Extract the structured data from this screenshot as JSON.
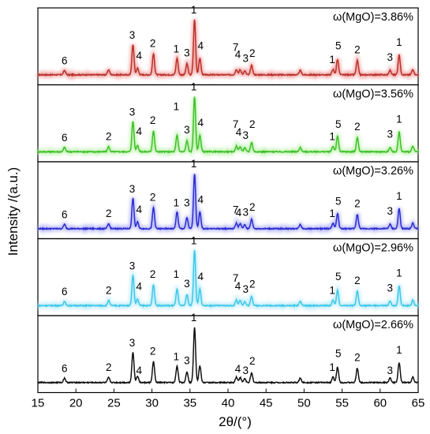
{
  "chart_data": {
    "type": "line",
    "xlabel": "2θ/(°)",
    "ylabel": "Intensity /(a.u.)",
    "xlim": [
      15,
      65
    ],
    "x_ticks": [
      "15",
      "20",
      "25",
      "30",
      "35",
      "40",
      "45",
      "50",
      "55",
      "60",
      "65"
    ],
    "grid": false,
    "baseline_peaks": [
      {
        "x": 18.5,
        "h": 0.08
      },
      {
        "x": 24.3,
        "h": 0.09
      },
      {
        "x": 27.5,
        "h": 0.55
      },
      {
        "x": 28.1,
        "h": 0.12
      },
      {
        "x": 30.2,
        "h": 0.38
      },
      {
        "x": 33.3,
        "h": 0.3
      },
      {
        "x": 34.6,
        "h": 0.2
      },
      {
        "x": 35.6,
        "h": 1.0
      },
      {
        "x": 36.3,
        "h": 0.3
      },
      {
        "x": 41.1,
        "h": 0.1
      },
      {
        "x": 41.6,
        "h": 0.09
      },
      {
        "x": 42.2,
        "h": 0.07
      },
      {
        "x": 43.1,
        "h": 0.17
      },
      {
        "x": 49.5,
        "h": 0.08
      },
      {
        "x": 53.8,
        "h": 0.1
      },
      {
        "x": 54.4,
        "h": 0.28
      },
      {
        "x": 57.0,
        "h": 0.26
      },
      {
        "x": 61.3,
        "h": 0.08
      },
      {
        "x": 62.5,
        "h": 0.36
      },
      {
        "x": 64.3,
        "h": 0.1
      }
    ],
    "series": [
      {
        "name": "ω(MgO)=3.86%",
        "color": "#b8322a",
        "glow": "#f08a8a",
        "peak_labels": [
          {
            "text": "6",
            "x": 18.5,
            "h": 0.16
          },
          {
            "text": "3",
            "x": 27.4,
            "h": 0.62
          },
          {
            "text": "4",
            "x": 28.3,
            "h": 0.25
          },
          {
            "text": "2",
            "x": 30.1,
            "h": 0.47
          },
          {
            "text": "1",
            "x": 33.2,
            "h": 0.37
          },
          {
            "text": "3",
            "x": 34.6,
            "h": 0.3
          },
          {
            "text": "1",
            "x": 35.5,
            "h": 1.08
          },
          {
            "text": "4",
            "x": 36.4,
            "h": 0.43
          },
          {
            "text": "7",
            "x": 41.0,
            "h": 0.4
          },
          {
            "text": "4",
            "x": 41.3,
            "h": 0.27
          },
          {
            "text": "3",
            "x": 42.3,
            "h": 0.2
          },
          {
            "text": "2",
            "x": 43.2,
            "h": 0.29
          },
          {
            "text": "1",
            "x": 53.7,
            "h": 0.18
          },
          {
            "text": "5",
            "x": 54.5,
            "h": 0.43
          },
          {
            "text": "2",
            "x": 57.0,
            "h": 0.36
          },
          {
            "text": "3",
            "x": 61.3,
            "h": 0.22
          },
          {
            "text": "1",
            "x": 62.5,
            "h": 0.49
          }
        ]
      },
      {
        "name": "ω(MgO)=3.56%",
        "color": "#3fbf2a",
        "glow": "#aaf096",
        "peak_labels": [
          {
            "text": "6",
            "x": 18.5,
            "h": 0.16
          },
          {
            "text": "2",
            "x": 24.3,
            "h": 0.18
          },
          {
            "text": "3",
            "x": 27.4,
            "h": 0.62
          },
          {
            "text": "4",
            "x": 28.3,
            "h": 0.27
          },
          {
            "text": "2",
            "x": 30.1,
            "h": 0.47
          },
          {
            "text": "1",
            "x": 33.2,
            "h": 0.72
          },
          {
            "text": "3",
            "x": 34.6,
            "h": 0.3
          },
          {
            "text": "1",
            "x": 35.5,
            "h": 1.08
          },
          {
            "text": "4",
            "x": 36.4,
            "h": 0.43
          },
          {
            "text": "7",
            "x": 41.0,
            "h": 0.4
          },
          {
            "text": "4",
            "x": 41.4,
            "h": 0.26
          },
          {
            "text": "3",
            "x": 42.3,
            "h": 0.2
          },
          {
            "text": "2",
            "x": 43.2,
            "h": 0.4
          },
          {
            "text": "1",
            "x": 53.7,
            "h": 0.18
          },
          {
            "text": "5",
            "x": 54.5,
            "h": 0.4
          },
          {
            "text": "2",
            "x": 57.0,
            "h": 0.36
          },
          {
            "text": "3",
            "x": 61.3,
            "h": 0.22
          },
          {
            "text": "1",
            "x": 62.5,
            "h": 0.49
          }
        ]
      },
      {
        "name": "ω(MgO)=3.26%",
        "color": "#2a2ccf",
        "glow": "#a0a2f5",
        "peak_labels": [
          {
            "text": "6",
            "x": 18.5,
            "h": 0.16
          },
          {
            "text": "2",
            "x": 24.3,
            "h": 0.18
          },
          {
            "text": "3",
            "x": 27.4,
            "h": 0.62
          },
          {
            "text": "4",
            "x": 28.3,
            "h": 0.25
          },
          {
            "text": "2",
            "x": 30.1,
            "h": 0.47
          },
          {
            "text": "1",
            "x": 33.2,
            "h": 0.37
          },
          {
            "text": "3",
            "x": 34.6,
            "h": 0.37
          },
          {
            "text": "1",
            "x": 35.5,
            "h": 1.08
          },
          {
            "text": "4",
            "x": 36.4,
            "h": 0.43
          },
          {
            "text": "7",
            "x": 41.0,
            "h": 0.24
          },
          {
            "text": "4",
            "x": 41.4,
            "h": 0.19
          },
          {
            "text": "3",
            "x": 42.3,
            "h": 0.2
          },
          {
            "text": "2",
            "x": 43.2,
            "h": 0.29
          },
          {
            "text": "1",
            "x": 53.7,
            "h": 0.18
          },
          {
            "text": "5",
            "x": 54.5,
            "h": 0.4
          },
          {
            "text": "2",
            "x": 57.0,
            "h": 0.36
          },
          {
            "text": "3",
            "x": 61.3,
            "h": 0.22
          },
          {
            "text": "1",
            "x": 62.5,
            "h": 0.49
          }
        ]
      },
      {
        "name": "ω(MgO)=2.96%",
        "color": "#3cc8e8",
        "glow": "#a8e6f7",
        "peak_labels": [
          {
            "text": "6",
            "x": 18.5,
            "h": 0.16
          },
          {
            "text": "2",
            "x": 24.3,
            "h": 0.18
          },
          {
            "text": "3",
            "x": 27.4,
            "h": 0.62
          },
          {
            "text": "4",
            "x": 28.3,
            "h": 0.25
          },
          {
            "text": "2",
            "x": 30.1,
            "h": 0.47
          },
          {
            "text": "1",
            "x": 33.2,
            "h": 0.47
          },
          {
            "text": "3",
            "x": 34.6,
            "h": 0.3
          },
          {
            "text": "1",
            "x": 35.5,
            "h": 1.08
          },
          {
            "text": "4",
            "x": 36.4,
            "h": 0.43
          },
          {
            "text": "7",
            "x": 41.0,
            "h": 0.4
          },
          {
            "text": "4",
            "x": 41.3,
            "h": 0.26
          },
          {
            "text": "3",
            "x": 42.3,
            "h": 0.2
          },
          {
            "text": "2",
            "x": 43.2,
            "h": 0.29
          },
          {
            "text": "1",
            "x": 53.7,
            "h": 0.18
          },
          {
            "text": "5",
            "x": 54.5,
            "h": 0.43
          },
          {
            "text": "2",
            "x": 57.0,
            "h": 0.36
          },
          {
            "text": "3",
            "x": 61.3,
            "h": 0.22
          },
          {
            "text": "1",
            "x": 62.5,
            "h": 0.49
          }
        ]
      },
      {
        "name": "ω(MgO)=2.66%",
        "color": "#111111",
        "glow": "",
        "peak_labels": [
          {
            "text": "6",
            "x": 18.5,
            "h": 0.16
          },
          {
            "text": "2",
            "x": 24.3,
            "h": 0.18
          },
          {
            "text": "3",
            "x": 27.4,
            "h": 0.62
          },
          {
            "text": "4",
            "x": 28.3,
            "h": 0.12
          },
          {
            "text": "2",
            "x": 30.1,
            "h": 0.47
          },
          {
            "text": "1",
            "x": 33.2,
            "h": 0.37
          },
          {
            "text": "3",
            "x": 34.6,
            "h": 0.3
          },
          {
            "text": "1",
            "x": 35.5,
            "h": 1.08
          },
          {
            "text": "4",
            "x": 41.3,
            "h": 0.15
          },
          {
            "text": "3",
            "x": 42.3,
            "h": 0.12
          },
          {
            "text": "2",
            "x": 43.2,
            "h": 0.29
          },
          {
            "text": "1",
            "x": 53.7,
            "h": 0.18
          },
          {
            "text": "5",
            "x": 54.5,
            "h": 0.43
          },
          {
            "text": "2",
            "x": 57.0,
            "h": 0.36
          },
          {
            "text": "3",
            "x": 61.3,
            "h": 0.12
          },
          {
            "text": "1",
            "x": 62.5,
            "h": 0.49
          }
        ]
      }
    ]
  }
}
